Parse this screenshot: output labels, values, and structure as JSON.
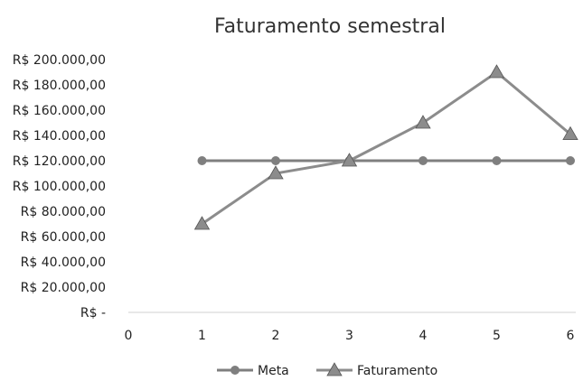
{
  "chart_data": {
    "type": "line",
    "title": "Faturamento semestral",
    "xlabel": "",
    "ylabel": "",
    "x": [
      1,
      2,
      3,
      4,
      5,
      6
    ],
    "xlim": [
      0,
      6
    ],
    "x_ticks": [
      "0",
      "1",
      "2",
      "3",
      "4",
      "5",
      "6"
    ],
    "ylim": [
      0,
      200000
    ],
    "y_ticks": [
      "R$ -",
      "R$ 20.000,00",
      "R$ 40.000,00",
      "R$ 60.000,00",
      "R$ 80.000,00",
      "R$ 100.000,00",
      "R$ 120.000,00",
      "R$ 140.000,00",
      "R$ 160.000,00",
      "R$ 180.000,00",
      "R$ 200.000,00"
    ],
    "grid": false,
    "legend": "bottom",
    "series": [
      {
        "name": "Meta",
        "marker": "circle",
        "color": "#7f7f7f",
        "values": [
          120000,
          120000,
          120000,
          120000,
          120000,
          120000
        ]
      },
      {
        "name": "Faturamento",
        "marker": "triangle",
        "color": "#8c8c8c",
        "values": [
          70000,
          110000,
          120000,
          150000,
          190000,
          141000
        ]
      }
    ]
  }
}
